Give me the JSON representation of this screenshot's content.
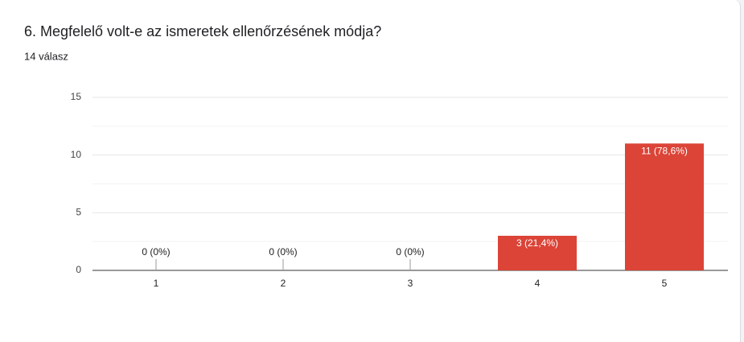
{
  "chart_data": {
    "type": "bar",
    "title": "6. Megfelelő volt-e az ismeretek ellenőrzésének módja?",
    "subtitle": "14 válasz",
    "categories": [
      "1",
      "2",
      "3",
      "4",
      "5"
    ],
    "values": [
      0,
      0,
      0,
      3,
      11
    ],
    "value_labels": [
      "0 (0%)",
      "0 (0%)",
      "0 (0%)",
      "3 (21,4%)",
      "11 (78,6%)"
    ],
    "color": "#db4437",
    "ylim": [
      0,
      15
    ],
    "yticks": [
      0,
      5,
      10,
      15
    ],
    "minor_yticks": [
      2.5,
      7.5,
      12.5
    ],
    "grid": true
  }
}
